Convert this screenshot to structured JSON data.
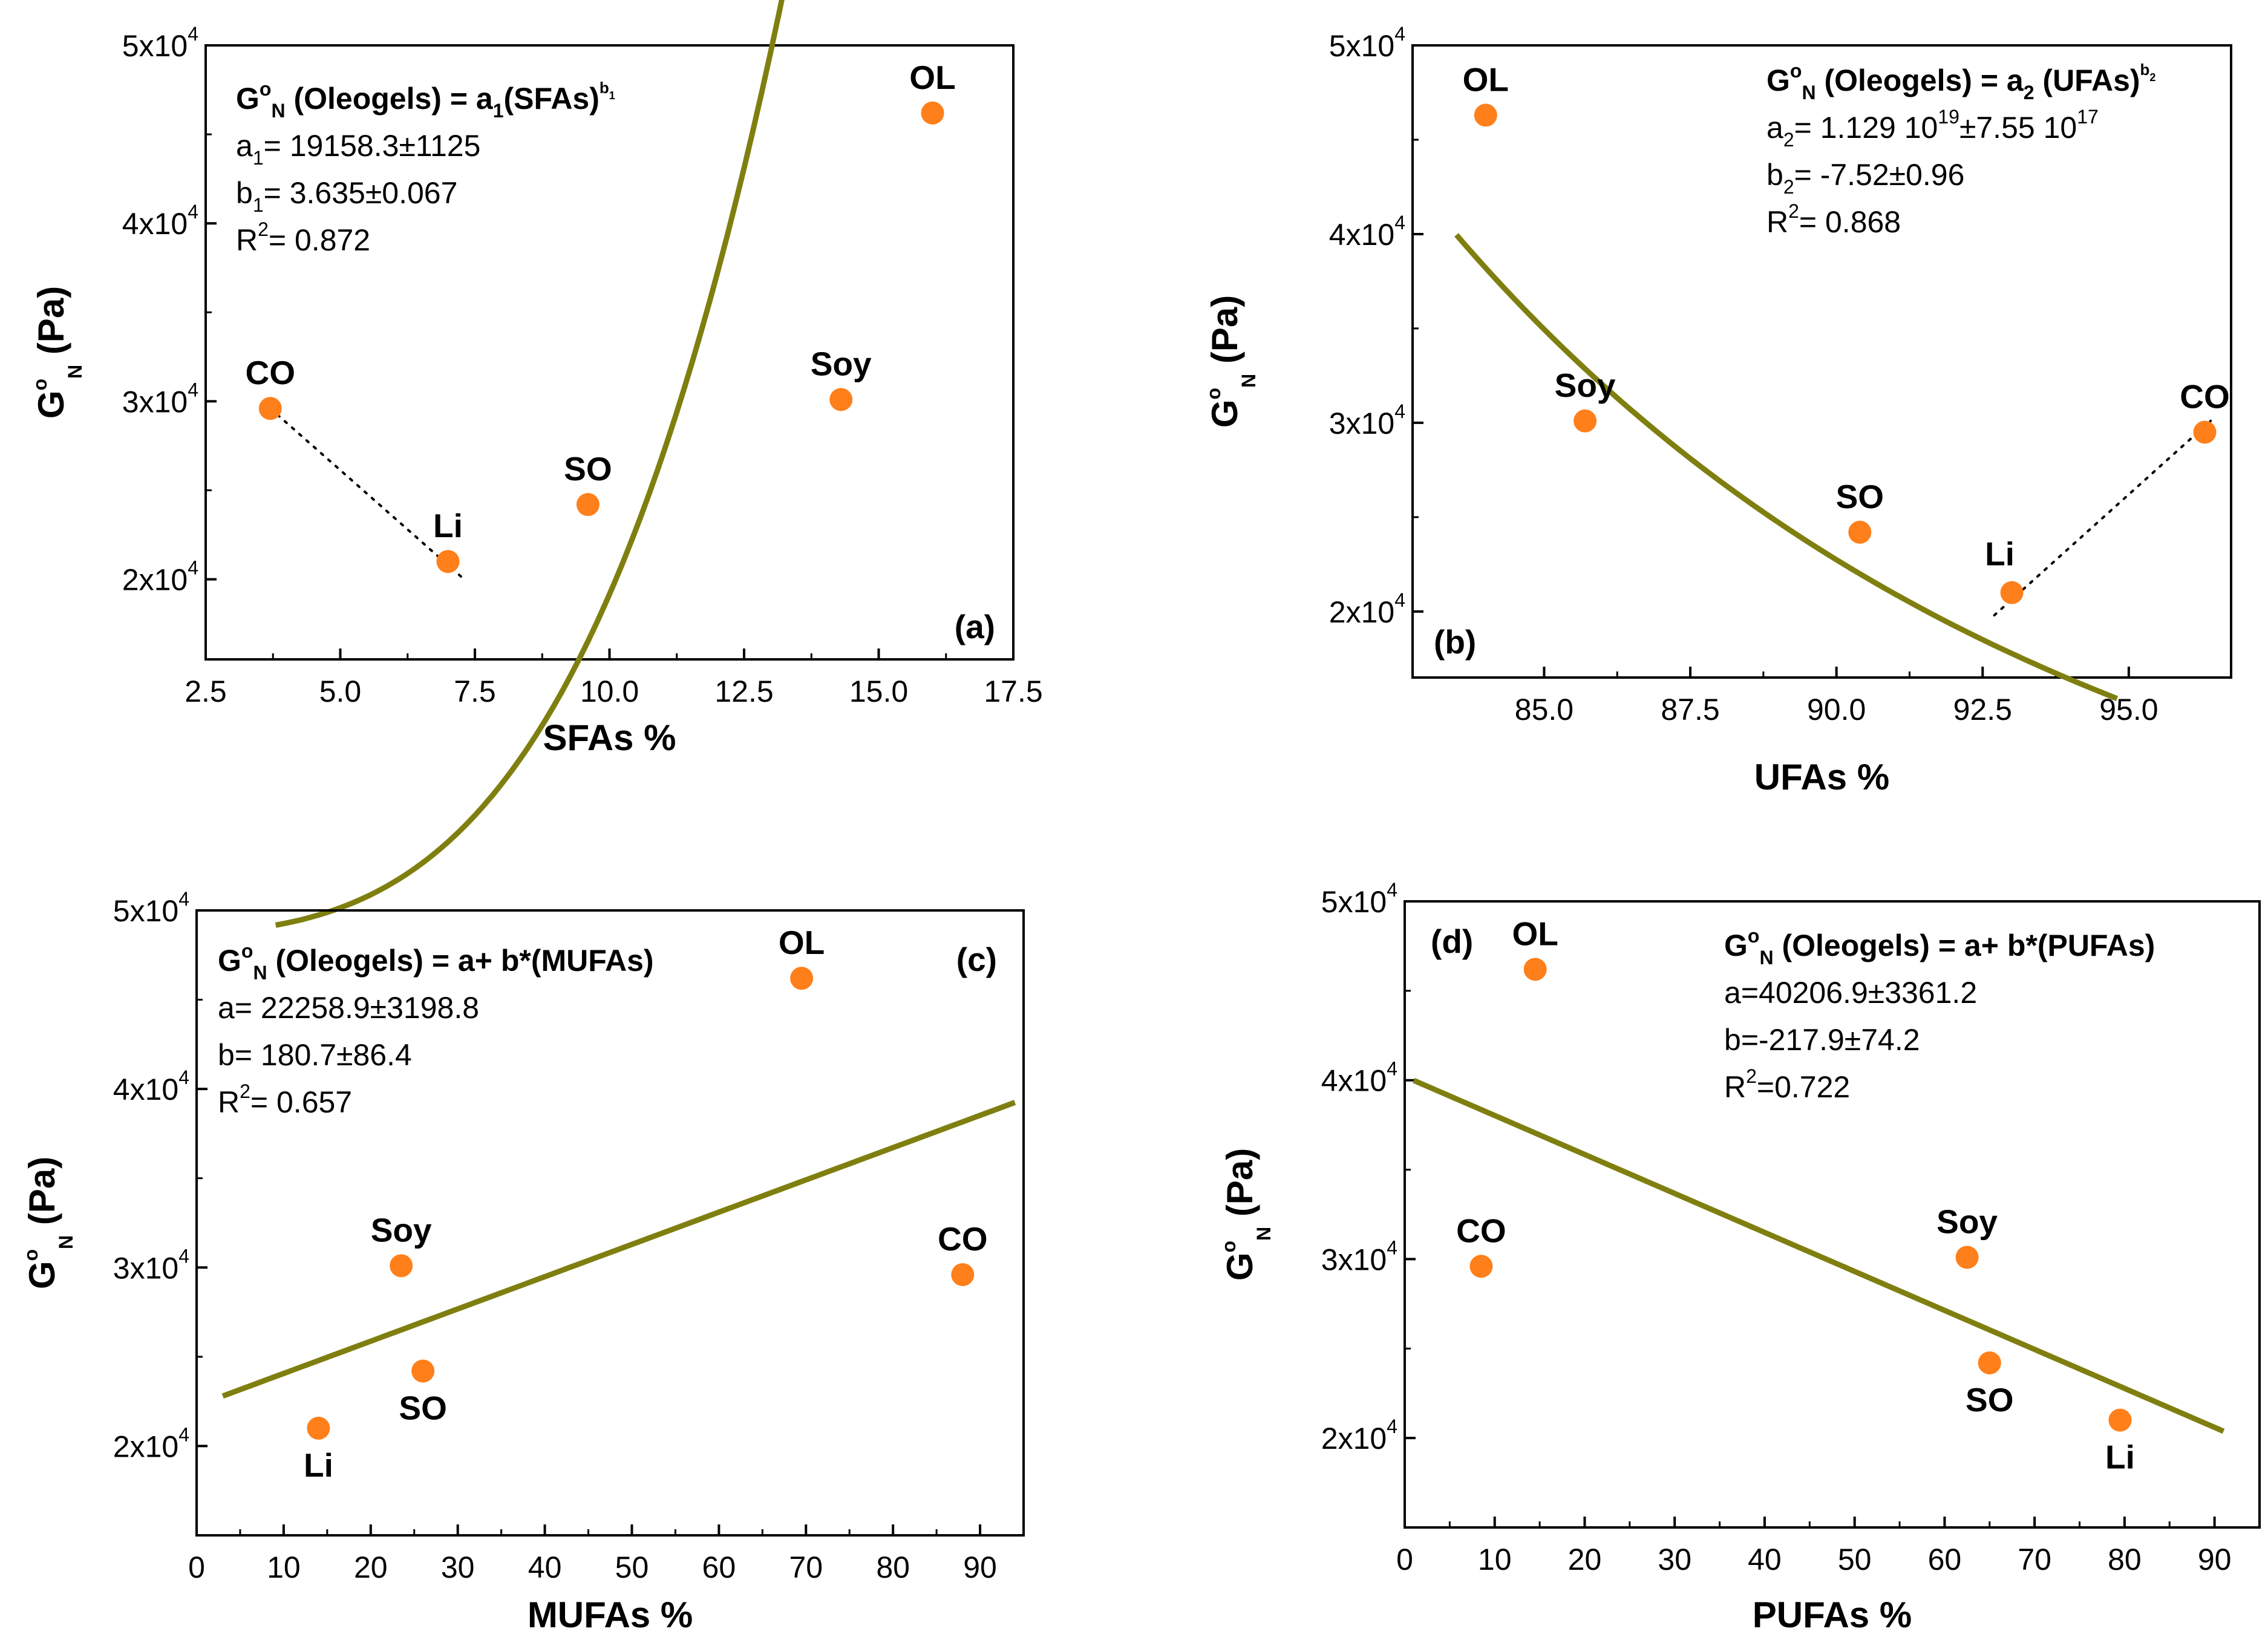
{
  "colors": {
    "fit": "#7f7f10",
    "marker": "#ff7f1a",
    "axis": "#000000"
  },
  "chart_data": [
    {
      "type": "scatter",
      "panel": "(a)",
      "xlabel": "SFAs %",
      "ylabel": {
        "main": "G",
        "sup": "o",
        "sub": "N",
        "unit": "(Pa)"
      },
      "xlim": [
        2.5,
        17.5
      ],
      "ylim": [
        15500,
        50000
      ],
      "xticks": [
        "2.5",
        "5.0",
        "7.5",
        "10.0",
        "12.5",
        "15.0",
        "17.5"
      ],
      "yticks": [
        {
          "value": 20000,
          "base": "2x10",
          "exp": "4"
        },
        {
          "value": 30000,
          "base": "3x10",
          "exp": "4"
        },
        {
          "value": 40000,
          "base": "4x10",
          "exp": "4"
        },
        {
          "value": 50000,
          "base": "5x10",
          "exp": "4"
        }
      ],
      "points": [
        {
          "label": "CO",
          "x": 3.7,
          "y": 29600,
          "label_pos": "above"
        },
        {
          "label": "Li",
          "x": 7.0,
          "y": 21000,
          "label_pos": "above"
        },
        {
          "label": "SO",
          "x": 9.6,
          "y": 24200,
          "label_pos": "above"
        },
        {
          "label": "Soy",
          "x": 14.3,
          "y": 30100,
          "label_pos": "above"
        },
        {
          "label": "OL",
          "x": 16.0,
          "y": 46200,
          "label_pos": "above"
        }
      ],
      "fit": {
        "model": "power",
        "a": 19158.3,
        "b": 3.635,
        "x_ref": 10.0,
        "x_range": [
          3.8,
          16.7
        ]
      },
      "dotted_segment": [
        [
          3.7,
          29600
        ],
        [
          7.3,
          20000
        ]
      ],
      "equation": {
        "title_parts": [
          "G",
          "o",
          "N",
          " (Oleogels) = a",
          "1",
          "(SFAs)",
          "b",
          "1"
        ],
        "lines": [
          {
            "main": "a",
            "sub": "1",
            "rest": "= 19158.3±1125"
          },
          {
            "main": "b",
            "sub": "1",
            "rest": "= 3.635±0.067"
          },
          {
            "main": "R",
            "sup": "2",
            "rest": "= 0.872"
          }
        ]
      }
    },
    {
      "type": "scatter",
      "panel": "(b)",
      "xlabel": "UFAs %",
      "ylabel": {
        "main": "G",
        "sup": "o",
        "sub": "N",
        "unit": "(Pa)"
      },
      "xlim": [
        82.75,
        96.75
      ],
      "ylim": [
        16500,
        50000
      ],
      "xticks": [
        "85.0",
        "87.5",
        "90.0",
        "92.5",
        "95.0"
      ],
      "xtick_values": [
        85.0,
        87.5,
        90.0,
        92.5,
        95.0
      ],
      "yticks": [
        {
          "value": 20000,
          "base": "2x10",
          "exp": "4"
        },
        {
          "value": 30000,
          "base": "3x10",
          "exp": "4"
        },
        {
          "value": 40000,
          "base": "4x10",
          "exp": "4"
        },
        {
          "value": 50000,
          "base": "5x10",
          "exp": "4"
        }
      ],
      "points": [
        {
          "label": "OL",
          "x": 84.0,
          "y": 46300,
          "label_pos": "above"
        },
        {
          "label": "Soy",
          "x": 85.7,
          "y": 30100,
          "label_pos": "above"
        },
        {
          "label": "SO",
          "x": 90.4,
          "y": 24200,
          "label_pos": "above"
        },
        {
          "label": "Li",
          "x": 93.0,
          "y": 21000,
          "label_pos": "above-left"
        },
        {
          "label": "CO",
          "x": 96.3,
          "y": 29500,
          "label_pos": "above"
        }
      ],
      "fit": {
        "model": "power",
        "a": 1.129e+19,
        "b": -7.52,
        "x_ref": 1.0,
        "x_range": [
          83.5,
          94.8
        ]
      },
      "dotted_segment": [
        [
          92.7,
          19800
        ],
        [
          96.4,
          30100
        ]
      ],
      "equation": {
        "title_parts": [
          "G",
          "o",
          "N",
          " (Oleogels) = a",
          "2",
          " (UFAs)",
          "b",
          "2"
        ],
        "lines": [
          {
            "main": "a",
            "sub": "2",
            "rest": "= 1.129 10",
            "sup2": "19",
            "rest2": "±7.55 10",
            "sup3": "17"
          },
          {
            "main": "b",
            "sub": "2",
            "rest": "= -7.52±0.96"
          },
          {
            "main": "R",
            "sup": "2",
            "rest": "= 0.868"
          }
        ]
      }
    },
    {
      "type": "scatter",
      "panel": "(c)",
      "xlabel": "MUFAs %",
      "ylabel": {
        "main": "G",
        "sup": "o",
        "sub": "N",
        "unit": "(Pa)"
      },
      "xlim": [
        0,
        95
      ],
      "ylim": [
        15000,
        50000
      ],
      "xticks": [
        "0",
        "10",
        "20",
        "30",
        "40",
        "50",
        "60",
        "70",
        "80",
        "90"
      ],
      "xtick_values": [
        0,
        10,
        20,
        30,
        40,
        50,
        60,
        70,
        80,
        90
      ],
      "yticks": [
        {
          "value": 20000,
          "base": "2x10",
          "exp": "4"
        },
        {
          "value": 30000,
          "base": "3x10",
          "exp": "4"
        },
        {
          "value": 40000,
          "base": "4x10",
          "exp": "4"
        },
        {
          "value": 50000,
          "base": "5x10",
          "exp": "4"
        }
      ],
      "points": [
        {
          "label": "Li",
          "x": 14,
          "y": 21000,
          "label_pos": "below"
        },
        {
          "label": "Soy",
          "x": 23.5,
          "y": 30100,
          "label_pos": "above"
        },
        {
          "label": "SO",
          "x": 26,
          "y": 24200,
          "label_pos": "below"
        },
        {
          "label": "OL",
          "x": 69.5,
          "y": 46200,
          "label_pos": "above"
        },
        {
          "label": "CO",
          "x": 88,
          "y": 29600,
          "label_pos": "above"
        }
      ],
      "fit": {
        "model": "linear",
        "a": 22258.9,
        "b": 180.7,
        "x_range": [
          3,
          94
        ]
      },
      "equation": {
        "title_parts": [
          "G",
          "o",
          "N",
          " (Oleogels) = a+ b*(MUFAs)"
        ],
        "lines": [
          {
            "main": "a",
            "rest": "= 22258.9±3198.8"
          },
          {
            "main": "b",
            "rest": "= 180.7±86.4"
          },
          {
            "main": "R",
            "sup": "2",
            "rest": "= 0.657"
          }
        ]
      }
    },
    {
      "type": "scatter",
      "panel": "(d)",
      "xlabel": "PUFAs %",
      "ylabel": {
        "main": "G",
        "sup": "o",
        "sub": "N",
        "unit": "(Pa)"
      },
      "xlim": [
        0,
        95
      ],
      "ylim": [
        15000,
        50000
      ],
      "xticks": [
        "0",
        "10",
        "20",
        "30",
        "40",
        "50",
        "60",
        "70",
        "80",
        "90"
      ],
      "xtick_values": [
        0,
        10,
        20,
        30,
        40,
        50,
        60,
        70,
        80,
        90
      ],
      "yticks": [
        {
          "value": 20000,
          "base": "2x10",
          "exp": "4"
        },
        {
          "value": 30000,
          "base": "3x10",
          "exp": "4"
        },
        {
          "value": 40000,
          "base": "4x10",
          "exp": "4"
        },
        {
          "value": 50000,
          "base": "5x10",
          "exp": "4"
        }
      ],
      "points": [
        {
          "label": "CO",
          "x": 8.5,
          "y": 29600,
          "label_pos": "above"
        },
        {
          "label": "OL",
          "x": 14.5,
          "y": 46200,
          "label_pos": "above"
        },
        {
          "label": "Soy",
          "x": 62.5,
          "y": 30100,
          "label_pos": "above"
        },
        {
          "label": "SO",
          "x": 65,
          "y": 24200,
          "label_pos": "below"
        },
        {
          "label": "Li",
          "x": 79.5,
          "y": 21000,
          "label_pos": "below"
        }
      ],
      "fit": {
        "model": "linear",
        "a": 40206.9,
        "b": -217.9,
        "x_range": [
          1,
          91
        ]
      },
      "equation": {
        "title_parts": [
          "G",
          "o",
          "N",
          " (Oleogels) = a+ b*(PUFAs)"
        ],
        "lines": [
          {
            "main": "a",
            "rest": "=40206.9±3361.2"
          },
          {
            "main": "b",
            "rest": "=-217.9±74.2"
          },
          {
            "main": "R",
            "sup": "2",
            "rest": "=0.722"
          }
        ]
      }
    }
  ]
}
